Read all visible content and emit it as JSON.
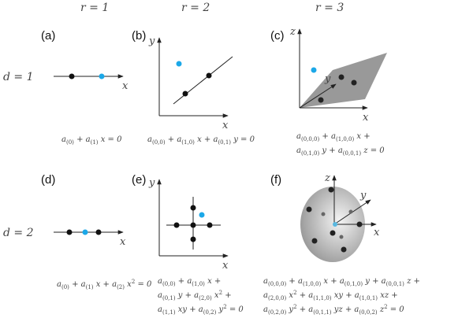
{
  "headers": {
    "r1": "r = 1",
    "r2": "r = 2",
    "r3": "r = 3",
    "d1": "d = 1",
    "d2": "d = 2"
  },
  "panels": {
    "a": "(a)",
    "b": "(b)",
    "c": "(c)",
    "d": "(d)",
    "e": "(e)",
    "f": "(f)"
  },
  "axes": {
    "x": "x",
    "y": "y",
    "z": "z"
  },
  "colors": {
    "highlight": "#1ca8e8",
    "point": "#111111",
    "surface": "#9a9a9a"
  },
  "equations": {
    "a": [
      [
        {
          "v": "a",
          "s": "(0)"
        },
        {
          "v": " + "
        },
        {
          "v": "a",
          "s": "(1)"
        },
        {
          "v": " x = 0"
        }
      ]
    ],
    "b": [
      [
        {
          "v": "a",
          "s": "(0,0)"
        },
        {
          "v": " + "
        },
        {
          "v": "a",
          "s": "(1,0)"
        },
        {
          "v": " x + "
        },
        {
          "v": "a",
          "s": "(0,1)"
        },
        {
          "v": " y = 0"
        }
      ]
    ],
    "c": [
      [
        {
          "v": "a",
          "s": "(0,0,0)"
        },
        {
          "v": " + "
        },
        {
          "v": "a",
          "s": "(1,0,0)"
        },
        {
          "v": " x +"
        }
      ],
      [
        {
          "v": "a",
          "s": "(0,1,0)"
        },
        {
          "v": " y + "
        },
        {
          "v": "a",
          "s": "(0,0,1)"
        },
        {
          "v": " z = 0"
        }
      ]
    ],
    "d": [
      [
        {
          "v": "a",
          "s": "(0)"
        },
        {
          "v": " + "
        },
        {
          "v": "a",
          "s": "(1)"
        },
        {
          "v": " x + "
        },
        {
          "v": "a",
          "s": "(2)"
        },
        {
          "v": " x",
          "p": "2"
        },
        {
          "v": " = 0"
        }
      ]
    ],
    "e": [
      [
        {
          "v": "a",
          "s": "(0,0)"
        },
        {
          "v": " + "
        },
        {
          "v": "a",
          "s": "(1,0)"
        },
        {
          "v": " x +"
        }
      ],
      [
        {
          "v": "a",
          "s": "(0,1)"
        },
        {
          "v": " y + "
        },
        {
          "v": "a",
          "s": "(2,0)"
        },
        {
          "v": " x",
          "p": "2"
        },
        {
          "v": " +"
        }
      ],
      [
        {
          "v": "a",
          "s": "(1,1)"
        },
        {
          "v": " xy + "
        },
        {
          "v": "a",
          "s": "(0,2)"
        },
        {
          "v": " y",
          "p": "2"
        },
        {
          "v": " = 0"
        }
      ]
    ],
    "f": [
      [
        {
          "v": "a",
          "s": "(0,0,0)"
        },
        {
          "v": " + "
        },
        {
          "v": "a",
          "s": "(1,0,0)"
        },
        {
          "v": " x + "
        },
        {
          "v": "a",
          "s": "(0,1,0)"
        },
        {
          "v": " y + "
        },
        {
          "v": "a",
          "s": "(0,0,1)"
        },
        {
          "v": " z +"
        }
      ],
      [
        {
          "v": "a",
          "s": "(2,0,0)"
        },
        {
          "v": " x",
          "p": "2"
        },
        {
          "v": " + "
        },
        {
          "v": "a",
          "s": "(1,1,0)"
        },
        {
          "v": " xy + "
        },
        {
          "v": "a",
          "s": "(1,0,1)"
        },
        {
          "v": " xz +"
        }
      ],
      [
        {
          "v": "a",
          "s": "(0,2,0)"
        },
        {
          "v": " y",
          "p": "2"
        },
        {
          "v": " + "
        },
        {
          "v": "a",
          "s": "(0,1,1)"
        },
        {
          "v": " yz + "
        },
        {
          "v": "a",
          "s": "(0,0,2)"
        },
        {
          "v": " z",
          "p": "2"
        },
        {
          "v": " = 0"
        }
      ]
    ]
  }
}
